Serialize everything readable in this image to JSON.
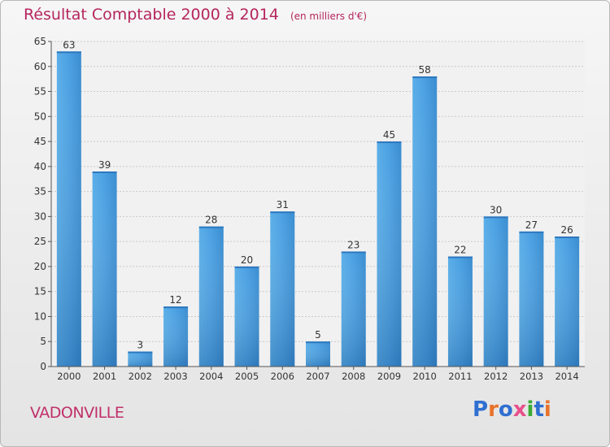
{
  "chart_data": {
    "type": "bar",
    "title": "Résultat Comptable 2000 à 2014",
    "unit": "(en milliers d'€)",
    "categories": [
      "2000",
      "2001",
      "2002",
      "2003",
      "2004",
      "2005",
      "2006",
      "2007",
      "2008",
      "2009",
      "2010",
      "2011",
      "2012",
      "2013",
      "2014"
    ],
    "values": [
      63,
      39,
      3,
      12,
      28,
      20,
      31,
      5,
      23,
      45,
      58,
      22,
      30,
      27,
      26
    ],
    "ylim": [
      0,
      65
    ],
    "yticks": [
      0,
      5,
      10,
      15,
      20,
      25,
      30,
      35,
      40,
      45,
      50,
      55,
      60,
      65
    ],
    "xlabel": "",
    "ylabel": "",
    "grid": true,
    "bar_color": "#3d8fd6"
  },
  "town": "VADONVILLE",
  "brand": "Proxiti",
  "colors": {
    "title": "#b5265c",
    "town": "#c0306a",
    "brand_letters": [
      "#2f6fd0",
      "#e8732a",
      "#2f6fd0",
      "#e84f8a",
      "#3aaa35",
      "#2f6fd0",
      "#e8732a"
    ]
  }
}
